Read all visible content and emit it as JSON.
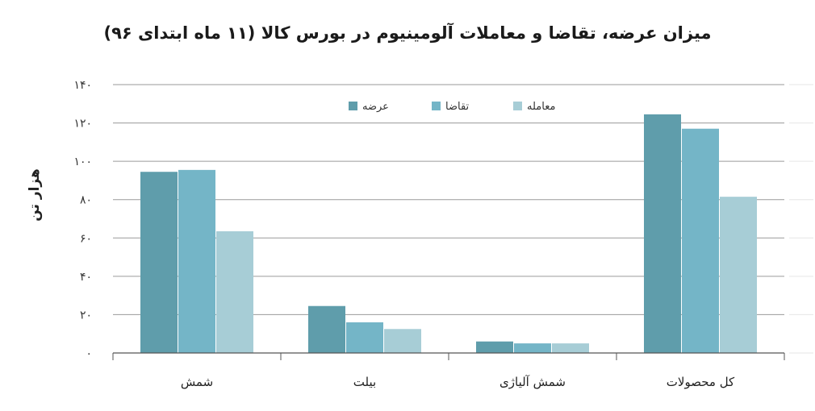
{
  "chart_data": {
    "type": "bar",
    "title": "میزان عرضه، تقاضا و معاملات آلومینیوم در بورس کالا (۱۱ ماه ابتدای ۹۶)",
    "ylabel": "هزار تن",
    "xlabel": "",
    "categories": [
      "شمش",
      "بیلت",
      "شمش آلیاژی",
      "کل محصولات"
    ],
    "series": [
      {
        "name": "عرضه",
        "values": [
          94.5,
          24.5,
          6,
          124.5
        ],
        "color": "#5f9dab"
      },
      {
        "name": "تقاضا",
        "values": [
          95.5,
          16,
          5,
          117
        ],
        "color": "#74b5c7"
      },
      {
        "name": "معامله",
        "values": [
          63.5,
          12.5,
          5,
          81.5
        ],
        "color": "#a7cdd6"
      }
    ],
    "ylim": [
      0,
      140
    ],
    "yticks": [
      0,
      20,
      40,
      60,
      80,
      100,
      120,
      140
    ],
    "ytick_labels": [
      "۰",
      "۲۰",
      "۴۰",
      "۶۰",
      "۸۰",
      "۱۰۰",
      "۱۲۰",
      "۱۴۰"
    ],
    "grid": true,
    "legend_position": "top-center"
  }
}
